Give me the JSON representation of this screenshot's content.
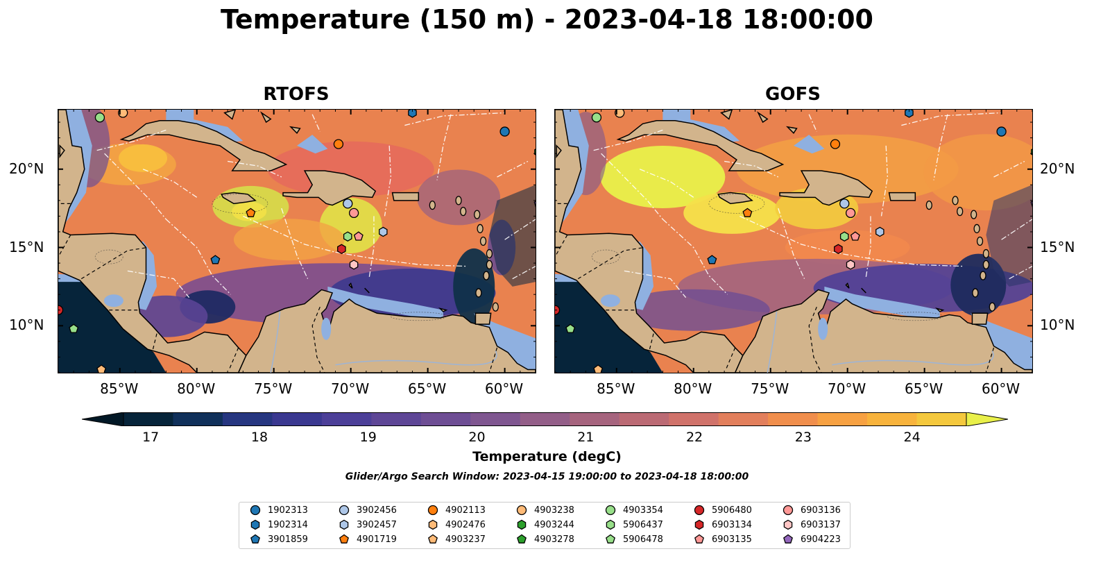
{
  "title": "Temperature (150 m) - 2023-04-18 18:00:00",
  "panels": [
    {
      "title": "RTOFS"
    },
    {
      "title": "GOFS"
    }
  ],
  "axes": {
    "y_ticks": [
      "20°N",
      "15°N",
      "10°N"
    ],
    "x_ticks": [
      "85°W",
      "80°W",
      "75°W",
      "70°W",
      "65°W",
      "60°W"
    ]
  },
  "colorbar": {
    "label": "Temperature (degC)",
    "ticks": [
      "17",
      "18",
      "19",
      "20",
      "21",
      "22",
      "23",
      "24"
    ],
    "min": 16.75,
    "max": 24.5,
    "colors": [
      "#06243a",
      "#10305a",
      "#263680",
      "#3a3890",
      "#4c3f98",
      "#5e4696",
      "#6e4e94",
      "#7f5690",
      "#935e88",
      "#a6647e",
      "#bb6a74",
      "#d0726a",
      "#e27f5c",
      "#f08e4c",
      "#f7a142",
      "#f8b33c",
      "#f4c83d"
    ],
    "over_color": "#e9f04a",
    "under_color": "#021826"
  },
  "search_window": "Glider/Argo Search Window: 2023-04-15 19:00:00 to 2023-04-18 18:00:00",
  "legend": [
    {
      "id": "1902313",
      "color": "#1f77b4",
      "marker": "circle"
    },
    {
      "id": "1902314",
      "color": "#1f77b4",
      "marker": "hexagon"
    },
    {
      "id": "3901859",
      "color": "#1f77b4",
      "marker": "pentagon"
    },
    {
      "id": "3902456",
      "color": "#aec7e8",
      "marker": "circle"
    },
    {
      "id": "3902457",
      "color": "#aec7e8",
      "marker": "hexagon"
    },
    {
      "id": "4901719",
      "color": "#ff7f0e",
      "marker": "pentagon"
    },
    {
      "id": "4902113",
      "color": "#ff7f0e",
      "marker": "circle"
    },
    {
      "id": "4902476",
      "color": "#ffbb78",
      "marker": "hexagon"
    },
    {
      "id": "4903237",
      "color": "#ffbb78",
      "marker": "pentagon"
    },
    {
      "id": "4903238",
      "color": "#ffbb78",
      "marker": "circle"
    },
    {
      "id": "4903244",
      "color": "#2ca02c",
      "marker": "hexagon"
    },
    {
      "id": "4903278",
      "color": "#2ca02c",
      "marker": "pentagon"
    },
    {
      "id": "4903354",
      "color": "#98df8a",
      "marker": "circle"
    },
    {
      "id": "5906437",
      "color": "#98df8a",
      "marker": "hexagon"
    },
    {
      "id": "5906478",
      "color": "#98df8a",
      "marker": "pentagon"
    },
    {
      "id": "5906480",
      "color": "#d62728",
      "marker": "circle"
    },
    {
      "id": "6903134",
      "color": "#d62728",
      "marker": "hexagon"
    },
    {
      "id": "6903135",
      "color": "#ff9896",
      "marker": "pentagon"
    },
    {
      "id": "6903136",
      "color": "#ff9896",
      "marker": "circle"
    },
    {
      "id": "6903137",
      "color": "#ffc6c5",
      "marker": "hexagon"
    },
    {
      "id": "6904223",
      "color": "#9467bd",
      "marker": "pentagon"
    }
  ],
  "chart_data": [
    {
      "type": "heatmap",
      "title": "RTOFS",
      "xlabel": "",
      "ylabel": "",
      "xlim": [
        -89,
        -58
      ],
      "ylim": [
        7,
        23.8
      ],
      "colorbar_label": "Temperature (degC)",
      "float_positions": [
        {
          "id": "4903354",
          "lon": -86.3,
          "lat": 23.3
        },
        {
          "id": "4903238",
          "lon": -84.8,
          "lat": 23.6
        },
        {
          "id": "1902314",
          "lon": -66.0,
          "lat": 23.6
        },
        {
          "id": "1902313",
          "lon": -60.0,
          "lat": 22.4
        },
        {
          "id": "4903244",
          "lon": -57.8,
          "lat": 21.1
        },
        {
          "id": "4902113",
          "lon": -70.8,
          "lat": 21.6
        },
        {
          "id": "4901719",
          "lon": -76.5,
          "lat": 17.2
        },
        {
          "id": "3902456",
          "lon": -70.2,
          "lat": 17.8
        },
        {
          "id": "6903136",
          "lon": -69.8,
          "lat": 17.2
        },
        {
          "id": "3902457",
          "lon": -67.9,
          "lat": 16.0
        },
        {
          "id": "5906437",
          "lon": -70.2,
          "lat": 15.7
        },
        {
          "id": "6903135",
          "lon": -69.5,
          "lat": 15.7
        },
        {
          "id": "6903134",
          "lon": -70.6,
          "lat": 14.9
        },
        {
          "id": "6903137",
          "lon": -69.8,
          "lat": 13.9
        },
        {
          "id": "3901859",
          "lon": -78.8,
          "lat": 14.2
        },
        {
          "id": "6904223",
          "lon": -57.8,
          "lat": 17.8
        },
        {
          "id": "5906480",
          "lon": -89.0,
          "lat": 11.0
        },
        {
          "id": "5906478",
          "lon": -88.0,
          "lat": 9.8
        },
        {
          "id": "4903237",
          "lon": -86.2,
          "lat": 7.2
        }
      ]
    },
    {
      "type": "heatmap",
      "title": "GOFS",
      "xlabel": "",
      "ylabel": "",
      "xlim": [
        -89,
        -58
      ],
      "ylim": [
        7,
        23.8
      ],
      "colorbar_label": "Temperature (degC)",
      "float_positions": [
        {
          "id": "4903354",
          "lon": -86.3,
          "lat": 23.3
        },
        {
          "id": "4903238",
          "lon": -84.8,
          "lat": 23.6
        },
        {
          "id": "1902314",
          "lon": -66.0,
          "lat": 23.6
        },
        {
          "id": "1902313",
          "lon": -60.0,
          "lat": 22.4
        },
        {
          "id": "4903244",
          "lon": -57.8,
          "lat": 21.1
        },
        {
          "id": "4902113",
          "lon": -70.8,
          "lat": 21.6
        },
        {
          "id": "4901719",
          "lon": -76.5,
          "lat": 17.2
        },
        {
          "id": "3902456",
          "lon": -70.2,
          "lat": 17.8
        },
        {
          "id": "6903136",
          "lon": -69.8,
          "lat": 17.2
        },
        {
          "id": "3902457",
          "lon": -67.9,
          "lat": 16.0
        },
        {
          "id": "5906437",
          "lon": -70.2,
          "lat": 15.7
        },
        {
          "id": "6903135",
          "lon": -69.5,
          "lat": 15.7
        },
        {
          "id": "6903134",
          "lon": -70.6,
          "lat": 14.9
        },
        {
          "id": "6903137",
          "lon": -69.8,
          "lat": 13.9
        },
        {
          "id": "3901859",
          "lon": -78.8,
          "lat": 14.2
        },
        {
          "id": "6904223",
          "lon": -57.8,
          "lat": 17.8
        },
        {
          "id": "5906480",
          "lon": -89.0,
          "lat": 11.0
        },
        {
          "id": "5906478",
          "lon": -88.0,
          "lat": 9.8
        },
        {
          "id": "4903237",
          "lon": -86.2,
          "lat": 7.2
        }
      ]
    }
  ]
}
